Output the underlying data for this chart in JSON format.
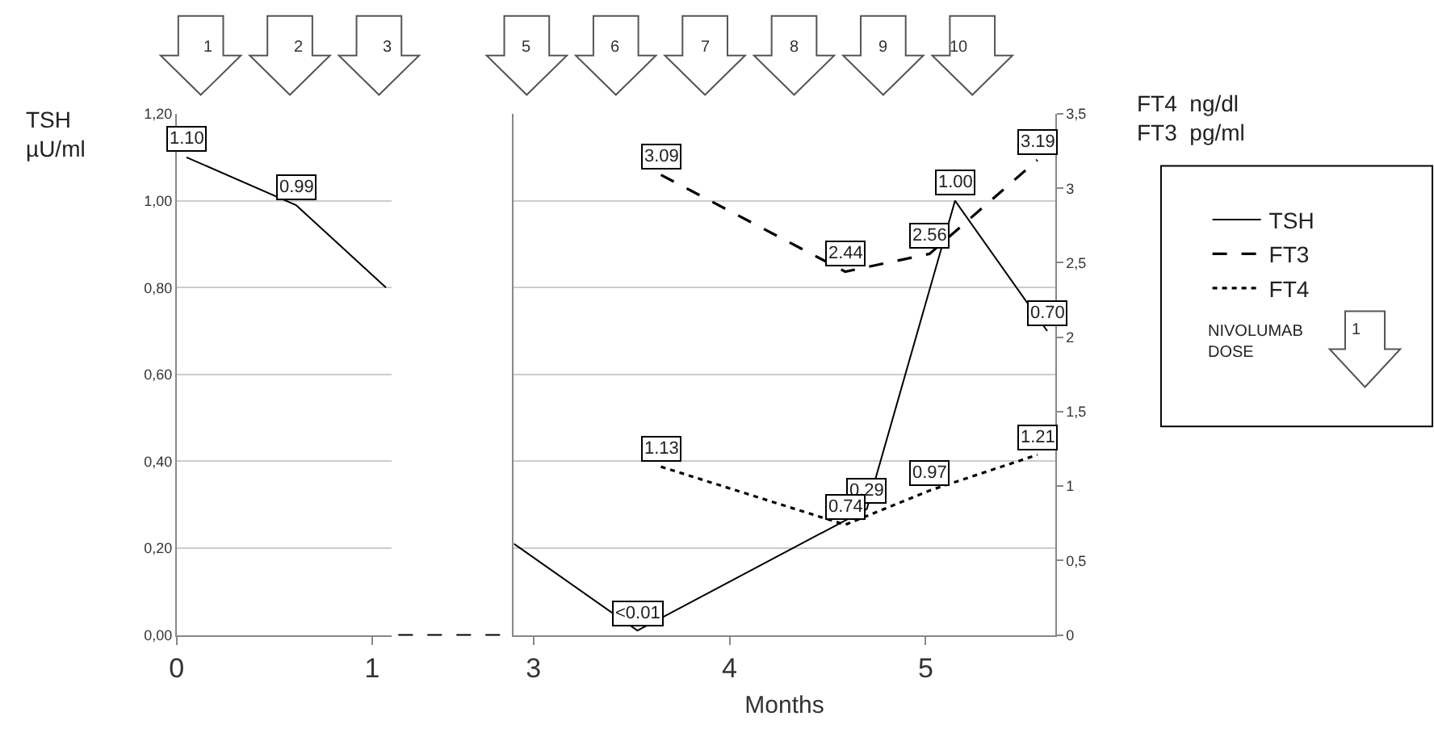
{
  "chart_data": [
    {
      "type": "line",
      "ylabel": "TSH\nµU/ml",
      "xlim": [
        0,
        1.1
      ],
      "xticks": [
        0,
        1
      ],
      "ylim": [
        0,
        1.2
      ],
      "yticks": [
        {
          "value": 0,
          "label": "0,00"
        },
        {
          "value": 0.2,
          "label": "0,20"
        },
        {
          "value": 0.4,
          "label": "0,40"
        },
        {
          "value": 0.6,
          "label": "0,60"
        },
        {
          "value": 0.8,
          "label": "0,80"
        },
        {
          "value": 1.0,
          "label": "1,00"
        },
        {
          "value": 1.2,
          "label": "1,20"
        }
      ],
      "grid": "y",
      "marker": "none",
      "series": [
        {
          "color": "#000000",
          "line_style": "solid",
          "x": [
            0.05,
            0.61,
            1.07
          ],
          "values": [
            1.1,
            0.99,
            0.8
          ],
          "value_labels": [
            "1.10",
            "0.99",
            null
          ]
        }
      ],
      "annotations": [
        "1",
        "2",
        "3"
      ]
    },
    {
      "type": "line",
      "xlabel": "Months",
      "y2label": "FT4  ng/dl\nFT3  pg/ml",
      "xlim": [
        2.9,
        5.66
      ],
      "xticks": [
        3,
        4,
        5
      ],
      "ylim": [
        0,
        1.2
      ],
      "y2lim": [
        0,
        3.5
      ],
      "y2ticks": [
        0,
        {
          "value": 0.5,
          "label": "0,5"
        },
        1,
        {
          "value": 1.5,
          "label": "1,5"
        },
        2,
        {
          "value": 2.5,
          "label": "2,5"
        },
        3,
        {
          "value": 3.5,
          "label": "3,5"
        }
      ],
      "grid": "y",
      "legend": "right",
      "marker": "none",
      "series": [
        {
          "name": "TSH",
          "color": "#000000",
          "line_style": "solid",
          "x": [
            2.9,
            3.53,
            4.7,
            5.15,
            5.62
          ],
          "values": [
            0.21,
            0.01,
            0.29,
            1.0,
            0.7
          ],
          "value_labels": [
            null,
            "<0.01",
            "0.29",
            "1.00",
            "0.70"
          ]
        },
        {
          "name": "FT3",
          "color": "#000000",
          "line_style": "dashed",
          "axis": "y2",
          "x": [
            3.65,
            4.59,
            5.02,
            5.57
          ],
          "values": [
            3.09,
            2.44,
            2.56,
            3.19
          ],
          "value_labels": [
            "3.09",
            "2.44",
            "2.56",
            "3.19"
          ]
        },
        {
          "name": "FT4",
          "color": "#000000",
          "line_style": "dotted",
          "axis": "y2",
          "x": [
            3.65,
            4.59,
            5.02,
            5.57
          ],
          "values": [
            1.13,
            0.74,
            0.97,
            1.21
          ],
          "value_labels": [
            "1.13",
            "0.74",
            "0.97",
            "1.21"
          ]
        }
      ],
      "annotations": [
        "5",
        "6",
        "7",
        "8",
        "9",
        "10",
        "NIVOLUMAB DOSE"
      ]
    }
  ]
}
